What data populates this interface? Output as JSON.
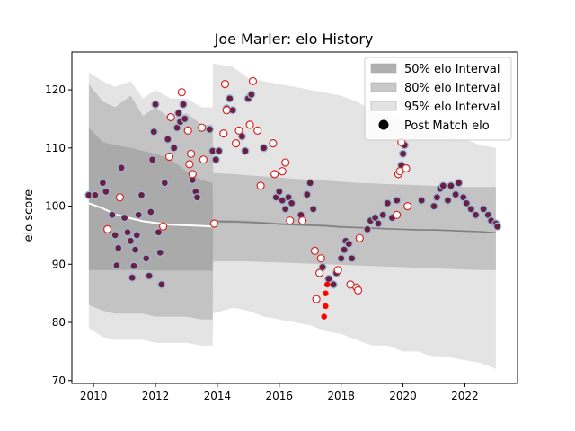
{
  "chart_data": {
    "type": "scatter",
    "title": "Joe Marler: elo History",
    "xlabel": "",
    "ylabel": "elo score",
    "xlim": [
      2009.3,
      2023.7
    ],
    "ylim": [
      69.5,
      126.5
    ],
    "x_ticks": [
      2010,
      2012,
      2014,
      2016,
      2018,
      2020,
      2022
    ],
    "y_ticks": [
      70,
      80,
      90,
      100,
      110,
      120
    ],
    "grid": false,
    "legend_position": "top-right",
    "legend": [
      {
        "label": "50% elo Interval",
        "kind": "band",
        "color": "#b0b0b0"
      },
      {
        "label": "80% elo Interval",
        "kind": "band",
        "color": "#c9c9c9"
      },
      {
        "label": "95% elo Interval",
        "kind": "band",
        "color": "#e3e3e3"
      },
      {
        "label": "Post Match elo",
        "kind": "marker",
        "color": "#000000"
      }
    ],
    "colors": {
      "win_fill": "#6a2140",
      "win_edge": "#9fb6d9",
      "loss_fill": "#ffffff",
      "loss_edge": "#d62728",
      "low_point": "#ff0000",
      "mean_line_early": "#ffffff",
      "mean_line": "#808080"
    },
    "intervals": {
      "x": [
        2009.85,
        2010.3,
        2010.7,
        2011.2,
        2011.6,
        2012.0,
        2012.5,
        2013.0,
        2013.5,
        2013.85,
        2013.86,
        2014.5,
        2015.0,
        2015.5,
        2016.0,
        2016.5,
        2017.0,
        2017.5,
        2018.0,
        2018.5,
        2019.0,
        2019.5,
        2020.0,
        2020.5,
        2021.0,
        2021.5,
        2022.0,
        2022.5,
        2023.0
      ],
      "mean": [
        100.5,
        99.6,
        98.6,
        97.9,
        97.4,
        97.1,
        96.8,
        96.7,
        96.6,
        96.5,
        97.4,
        97.3,
        97.2,
        97.1,
        96.9,
        96.8,
        96.7,
        96.6,
        96.4,
        96.3,
        96.2,
        96.1,
        96.0,
        95.9,
        95.9,
        95.8,
        95.7,
        95.6,
        95.4
      ],
      "band50": {
        "lower": [
          89.0,
          89.0,
          89.0,
          89.0,
          89.0,
          88.9,
          88.9,
          88.9,
          88.9,
          88.9,
          97.1,
          97.1,
          97.1,
          97.0,
          96.9,
          96.8,
          96.7,
          96.6,
          96.5,
          96.4,
          96.3,
          96.1,
          96.0,
          95.9,
          95.8,
          95.7,
          95.6,
          95.6,
          95.6
        ],
        "upper": [
          113.5,
          111.0,
          110.5,
          110.0,
          109.5,
          109.0,
          108.0,
          106.0,
          104.5,
          104.0,
          97.6,
          97.6,
          97.5,
          97.3,
          97.1,
          97.0,
          96.9,
          96.8,
          96.6,
          96.5,
          96.4,
          96.2,
          96.1,
          96.0,
          95.9,
          95.8,
          95.7,
          95.6,
          95.6
        ]
      },
      "band80": {
        "lower": [
          83.0,
          82.0,
          81.5,
          81.5,
          81.5,
          81.0,
          81.0,
          81.0,
          80.5,
          80.5,
          90.5,
          90.5,
          90.5,
          90.4,
          90.3,
          90.2,
          90.1,
          90.0,
          89.9,
          89.8,
          89.7,
          89.6,
          89.5,
          89.4,
          89.3,
          89.2,
          89.1,
          89.0,
          89.0
        ],
        "upper": [
          121.0,
          118.0,
          117.0,
          119.0,
          115.5,
          117.0,
          115.0,
          116.0,
          114.0,
          114.0,
          105.7,
          105.5,
          105.3,
          105.1,
          104.9,
          104.7,
          104.5,
          104.4,
          104.2,
          104.0,
          103.9,
          103.8,
          103.7,
          103.6,
          103.5,
          103.4,
          103.3,
          103.3,
          103.3
        ]
      },
      "band95": {
        "lower": [
          79.0,
          77.5,
          77.0,
          77.0,
          77.0,
          76.5,
          76.5,
          76.5,
          76.0,
          76.0,
          81.5,
          82.5,
          82.0,
          81.0,
          80.5,
          80.0,
          79.5,
          78.5,
          78.0,
          77.0,
          76.0,
          76.0,
          75.0,
          75.0,
          74.0,
          74.0,
          73.5,
          73.0,
          72.0
        ],
        "upper": [
          123.0,
          121.5,
          120.5,
          121.5,
          118.5,
          120.0,
          118.5,
          118.5,
          117.0,
          117.0,
          124.5,
          124.0,
          122.0,
          121.5,
          121.0,
          120.5,
          120.0,
          119.5,
          119.0,
          118.0,
          116.5,
          115.5,
          114.5,
          113.5,
          112.5,
          112.0,
          111.5,
          110.5,
          110.0
        ]
      }
    },
    "post_match_elo": [
      {
        "x": 2009.85,
        "y": 101.9,
        "r": "W"
      },
      {
        "x": 2010.05,
        "y": 101.9,
        "r": "W"
      },
      {
        "x": 2010.3,
        "y": 104.0,
        "r": "W"
      },
      {
        "x": 2010.4,
        "y": 102.5,
        "r": "W"
      },
      {
        "x": 2010.6,
        "y": 98.5,
        "r": "W"
      },
      {
        "x": 2010.7,
        "y": 95.0,
        "r": "W"
      },
      {
        "x": 2010.75,
        "y": 89.8,
        "r": "W"
      },
      {
        "x": 2010.8,
        "y": 92.8,
        "r": "W"
      },
      {
        "x": 2010.9,
        "y": 106.6,
        "r": "W"
      },
      {
        "x": 2011.0,
        "y": 98.0,
        "r": "W"
      },
      {
        "x": 2011.1,
        "y": 95.5,
        "r": "W"
      },
      {
        "x": 2011.2,
        "y": 94.0,
        "r": "W"
      },
      {
        "x": 2011.25,
        "y": 87.7,
        "r": "W"
      },
      {
        "x": 2011.3,
        "y": 89.7,
        "r": "W"
      },
      {
        "x": 2011.35,
        "y": 92.5,
        "r": "W"
      },
      {
        "x": 2011.4,
        "y": 95.0,
        "r": "W"
      },
      {
        "x": 2011.45,
        "y": 98.5,
        "r": "W"
      },
      {
        "x": 2011.55,
        "y": 101.9,
        "r": "W"
      },
      {
        "x": 2011.7,
        "y": 91.0,
        "r": "W"
      },
      {
        "x": 2011.8,
        "y": 88.0,
        "r": "W"
      },
      {
        "x": 2011.85,
        "y": 99.0,
        "r": "W"
      },
      {
        "x": 2011.9,
        "y": 108.0,
        "r": "W"
      },
      {
        "x": 2011.95,
        "y": 112.8,
        "r": "W"
      },
      {
        "x": 2012.0,
        "y": 117.5,
        "r": "W"
      },
      {
        "x": 2012.1,
        "y": 95.5,
        "r": "W"
      },
      {
        "x": 2012.15,
        "y": 92.0,
        "r": "W"
      },
      {
        "x": 2012.2,
        "y": 86.5,
        "r": "W"
      },
      {
        "x": 2012.3,
        "y": 104.0,
        "r": "W"
      },
      {
        "x": 2012.4,
        "y": 111.5,
        "r": "W"
      },
      {
        "x": 2012.6,
        "y": 110.0,
        "r": "W"
      },
      {
        "x": 2012.7,
        "y": 113.5,
        "r": "W"
      },
      {
        "x": 2012.75,
        "y": 116.0,
        "r": "W"
      },
      {
        "x": 2012.8,
        "y": 114.5,
        "r": "W"
      },
      {
        "x": 2012.9,
        "y": 117.5,
        "r": "W"
      },
      {
        "x": 2012.95,
        "y": 115.0,
        "r": "W"
      },
      {
        "x": 2013.2,
        "y": 104.5,
        "r": "W"
      },
      {
        "x": 2013.3,
        "y": 102.5,
        "r": "W"
      },
      {
        "x": 2013.35,
        "y": 101.5,
        "r": "W"
      },
      {
        "x": 2013.75,
        "y": 113.2,
        "r": "W"
      },
      {
        "x": 2013.85,
        "y": 109.5,
        "r": "W"
      },
      {
        "x": 2013.95,
        "y": 108.0,
        "r": "W"
      },
      {
        "x": 2014.05,
        "y": 109.5,
        "r": "W"
      },
      {
        "x": 2014.3,
        "y": 116.8,
        "r": "W"
      },
      {
        "x": 2014.4,
        "y": 118.5,
        "r": "W"
      },
      {
        "x": 2014.5,
        "y": 116.5,
        "r": "W"
      },
      {
        "x": 2014.8,
        "y": 112.0,
        "r": "W"
      },
      {
        "x": 2014.9,
        "y": 109.5,
        "r": "W"
      },
      {
        "x": 2015.0,
        "y": 118.5,
        "r": "W"
      },
      {
        "x": 2015.1,
        "y": 119.2,
        "r": "W"
      },
      {
        "x": 2015.5,
        "y": 110.0,
        "r": "W"
      },
      {
        "x": 2015.9,
        "y": 101.5,
        "r": "W"
      },
      {
        "x": 2016.0,
        "y": 102.5,
        "r": "W"
      },
      {
        "x": 2016.1,
        "y": 101.0,
        "r": "W"
      },
      {
        "x": 2016.2,
        "y": 99.5,
        "r": "W"
      },
      {
        "x": 2016.3,
        "y": 101.5,
        "r": "W"
      },
      {
        "x": 2016.4,
        "y": 100.5,
        "r": "W"
      },
      {
        "x": 2016.7,
        "y": 98.5,
        "r": "W"
      },
      {
        "x": 2016.9,
        "y": 102.0,
        "r": "W"
      },
      {
        "x": 2017.0,
        "y": 104.0,
        "r": "W"
      },
      {
        "x": 2017.1,
        "y": 99.5,
        "r": "W"
      },
      {
        "x": 2017.4,
        "y": 89.5,
        "r": "W"
      },
      {
        "x": 2017.6,
        "y": 87.5,
        "r": "W"
      },
      {
        "x": 2017.75,
        "y": 86.5,
        "r": "W"
      },
      {
        "x": 2017.85,
        "y": 88.5,
        "r": "W"
      },
      {
        "x": 2018.0,
        "y": 91.0,
        "r": "W"
      },
      {
        "x": 2018.1,
        "y": 92.5,
        "r": "W"
      },
      {
        "x": 2018.15,
        "y": 94.0,
        "r": "W"
      },
      {
        "x": 2018.25,
        "y": 93.5,
        "r": "W"
      },
      {
        "x": 2018.35,
        "y": 91.0,
        "r": "W"
      },
      {
        "x": 2018.85,
        "y": 96.0,
        "r": "W"
      },
      {
        "x": 2018.95,
        "y": 97.5,
        "r": "W"
      },
      {
        "x": 2019.1,
        "y": 98.0,
        "r": "W"
      },
      {
        "x": 2019.2,
        "y": 97.0,
        "r": "W"
      },
      {
        "x": 2019.35,
        "y": 98.5,
        "r": "W"
      },
      {
        "x": 2019.5,
        "y": 100.5,
        "r": "W"
      },
      {
        "x": 2019.65,
        "y": 98.0,
        "r": "W"
      },
      {
        "x": 2019.8,
        "y": 101.0,
        "r": "W"
      },
      {
        "x": 2019.95,
        "y": 107.0,
        "r": "W"
      },
      {
        "x": 2020.0,
        "y": 109.0,
        "r": "W"
      },
      {
        "x": 2020.05,
        "y": 110.5,
        "r": "W"
      },
      {
        "x": 2020.6,
        "y": 101.0,
        "r": "W"
      },
      {
        "x": 2021.0,
        "y": 100.0,
        "r": "W"
      },
      {
        "x": 2021.1,
        "y": 101.5,
        "r": "W"
      },
      {
        "x": 2021.2,
        "y": 103.0,
        "r": "W"
      },
      {
        "x": 2021.3,
        "y": 103.5,
        "r": "W"
      },
      {
        "x": 2021.45,
        "y": 101.0,
        "r": "W"
      },
      {
        "x": 2021.55,
        "y": 103.5,
        "r": "W"
      },
      {
        "x": 2021.7,
        "y": 102.0,
        "r": "W"
      },
      {
        "x": 2021.8,
        "y": 104.0,
        "r": "W"
      },
      {
        "x": 2021.95,
        "y": 101.5,
        "r": "W"
      },
      {
        "x": 2022.05,
        "y": 100.5,
        "r": "W"
      },
      {
        "x": 2022.2,
        "y": 99.5,
        "r": "W"
      },
      {
        "x": 2022.35,
        "y": 98.5,
        "r": "W"
      },
      {
        "x": 2022.6,
        "y": 99.5,
        "r": "W"
      },
      {
        "x": 2022.75,
        "y": 98.5,
        "r": "W"
      },
      {
        "x": 2022.85,
        "y": 97.5,
        "r": "W"
      },
      {
        "x": 2023.0,
        "y": 97.0,
        "r": "W"
      },
      {
        "x": 2023.05,
        "y": 96.5,
        "r": "W"
      },
      {
        "x": 2010.45,
        "y": 96.0,
        "r": "L"
      },
      {
        "x": 2010.85,
        "y": 101.5,
        "r": "L"
      },
      {
        "x": 2012.25,
        "y": 96.5,
        "r": "L"
      },
      {
        "x": 2012.45,
        "y": 108.5,
        "r": "L"
      },
      {
        "x": 2012.5,
        "y": 115.3,
        "r": "L"
      },
      {
        "x": 2012.85,
        "y": 119.6,
        "r": "L"
      },
      {
        "x": 2013.05,
        "y": 113.0,
        "r": "L"
      },
      {
        "x": 2013.1,
        "y": 107.2,
        "r": "L"
      },
      {
        "x": 2013.15,
        "y": 109.0,
        "r": "L"
      },
      {
        "x": 2013.2,
        "y": 105.5,
        "r": "L"
      },
      {
        "x": 2013.5,
        "y": 113.5,
        "r": "L"
      },
      {
        "x": 2013.55,
        "y": 108.0,
        "r": "L"
      },
      {
        "x": 2013.9,
        "y": 97.0,
        "r": "L"
      },
      {
        "x": 2014.2,
        "y": 112.5,
        "r": "L"
      },
      {
        "x": 2014.25,
        "y": 121.0,
        "r": "L"
      },
      {
        "x": 2014.3,
        "y": 116.5,
        "r": "L"
      },
      {
        "x": 2014.6,
        "y": 110.8,
        "r": "L"
      },
      {
        "x": 2014.7,
        "y": 113.0,
        "r": "L"
      },
      {
        "x": 2015.05,
        "y": 114.0,
        "r": "L"
      },
      {
        "x": 2015.15,
        "y": 121.5,
        "r": "L"
      },
      {
        "x": 2015.3,
        "y": 113.0,
        "r": "L"
      },
      {
        "x": 2015.4,
        "y": 103.5,
        "r": "L"
      },
      {
        "x": 2015.8,
        "y": 110.8,
        "r": "L"
      },
      {
        "x": 2015.85,
        "y": 105.5,
        "r": "L"
      },
      {
        "x": 2016.1,
        "y": 106.0,
        "r": "L"
      },
      {
        "x": 2016.2,
        "y": 107.5,
        "r": "L"
      },
      {
        "x": 2016.35,
        "y": 97.5,
        "r": "L"
      },
      {
        "x": 2016.75,
        "y": 97.5,
        "r": "L"
      },
      {
        "x": 2017.15,
        "y": 92.3,
        "r": "L"
      },
      {
        "x": 2017.2,
        "y": 84.0,
        "r": "L"
      },
      {
        "x": 2017.3,
        "y": 88.5,
        "r": "L"
      },
      {
        "x": 2017.35,
        "y": 91.0,
        "r": "L"
      },
      {
        "x": 2017.9,
        "y": 89.0,
        "r": "L"
      },
      {
        "x": 2018.3,
        "y": 86.5,
        "r": "L"
      },
      {
        "x": 2018.5,
        "y": 86.0,
        "r": "L"
      },
      {
        "x": 2018.55,
        "y": 85.5,
        "r": "L"
      },
      {
        "x": 2018.6,
        "y": 94.5,
        "r": "L"
      },
      {
        "x": 2019.8,
        "y": 98.5,
        "r": "L"
      },
      {
        "x": 2019.85,
        "y": 105.5,
        "r": "L"
      },
      {
        "x": 2019.9,
        "y": 106.0,
        "r": "L"
      },
      {
        "x": 2019.95,
        "y": 111.0,
        "r": "L"
      },
      {
        "x": 2020.1,
        "y": 106.5,
        "r": "L"
      },
      {
        "x": 2020.15,
        "y": 100.0,
        "r": "L"
      },
      {
        "x": 2017.55,
        "y": 86.5,
        "r": "X"
      },
      {
        "x": 2017.5,
        "y": 85.0,
        "r": "X"
      },
      {
        "x": 2017.5,
        "y": 82.8,
        "r": "X"
      },
      {
        "x": 2017.45,
        "y": 81.0,
        "r": "X"
      }
    ]
  }
}
